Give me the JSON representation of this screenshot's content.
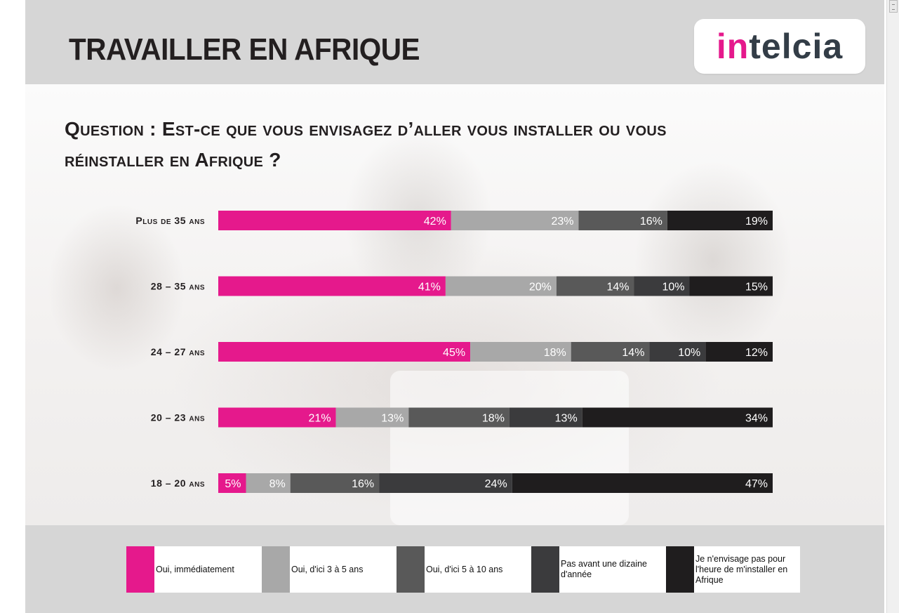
{
  "header": {
    "title": "TRAVAILLER EN AFRIQUE",
    "logo_accent": "in",
    "logo_rest": "telcia"
  },
  "question": "Question : Est-ce que vous envisagez d’aller vous installer ou vous réinstaller en Afrique ?",
  "colors": {
    "accent": "#e5198c",
    "series": [
      "#e5198c",
      "#a8a8a8",
      "#595959",
      "#3b3b3d",
      "#1f1d1e"
    ]
  },
  "chart_data": {
    "type": "bar",
    "orientation": "horizontal",
    "stacked": true,
    "percent": true,
    "categories": [
      "Plus de 35 ans",
      "28 – 35 ans",
      "24 – 27 ans",
      "20 – 23 ans",
      "18 – 20 ans"
    ],
    "series": [
      {
        "name": "Oui, immédiatement",
        "color": "#e5198c",
        "values": [
          42,
          41,
          45,
          21,
          5
        ]
      },
      {
        "name": "Oui, d'ici 3 à 5 ans",
        "color": "#a8a8a8",
        "values": [
          23,
          20,
          18,
          13,
          8
        ]
      },
      {
        "name": "Oui, d'ici 5 à 10 ans",
        "color": "#595959",
        "values": [
          16,
          14,
          14,
          18,
          16
        ]
      },
      {
        "name": "Pas avant une dizaine d'année",
        "color": "#3b3b3d",
        "values": [
          null,
          10,
          10,
          13,
          24
        ]
      },
      {
        "name": "Je n'envisage pas pour l'heure de m'installer en Afrique",
        "color": "#1f1d1e",
        "values": [
          19,
          15,
          12,
          34,
          47
        ]
      }
    ],
    "value_format": "{v}%",
    "legend_position": "bottom"
  }
}
